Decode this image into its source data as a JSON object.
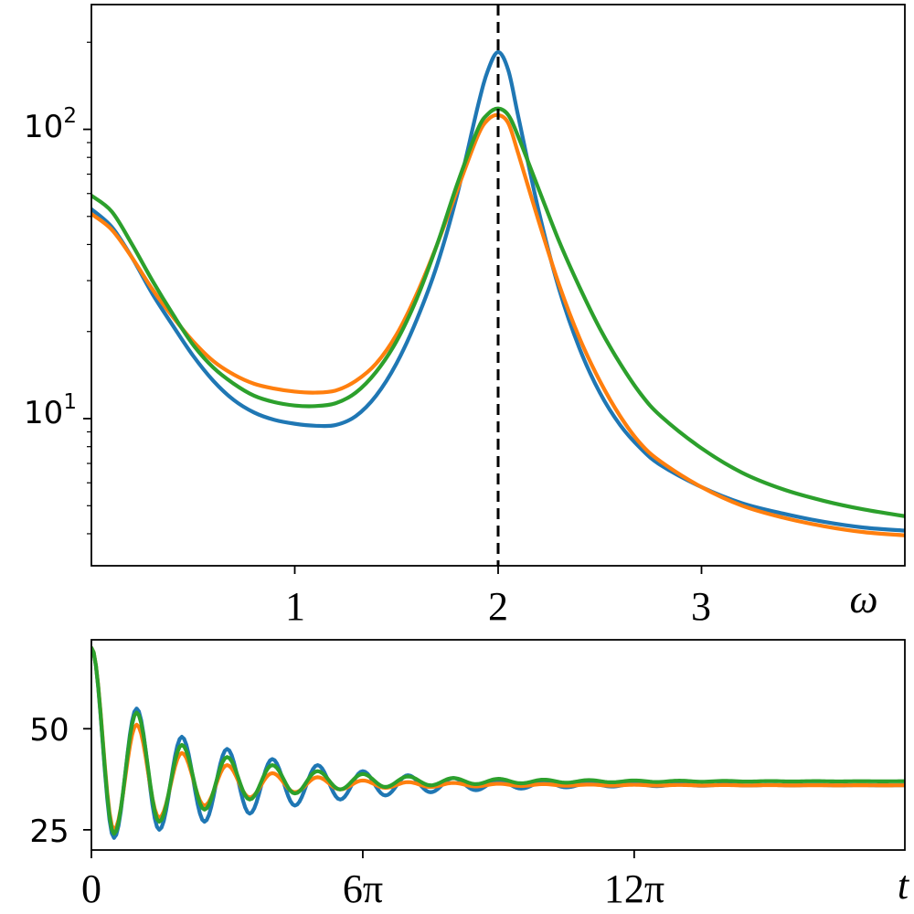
{
  "chart_data": [
    {
      "type": "line",
      "title": "",
      "xlabel": "ω",
      "ylabel": "",
      "xlim": [
        0,
        4.0
      ],
      "ylim": [
        3.1,
        270
      ],
      "yscale": "log",
      "xticks": [
        {
          "value": 1,
          "label": "1"
        },
        {
          "value": 2,
          "label": "2"
        },
        {
          "value": 3,
          "label": "3"
        }
      ],
      "yticks": [
        {
          "value": 10,
          "base": "10",
          "exp": "1"
        },
        {
          "value": 100,
          "base": "10",
          "exp": "2"
        }
      ],
      "grid": false,
      "reference_line": {
        "x": 2,
        "style": "dashed",
        "color": "#000000"
      },
      "series": [
        {
          "color": "#1f77b4",
          "x": [
            0.0,
            0.1,
            0.2,
            0.3,
            0.4,
            0.5,
            0.6,
            0.7,
            0.8,
            0.9,
            1.0,
            1.1,
            1.2,
            1.3,
            1.4,
            1.5,
            1.6,
            1.7,
            1.8,
            1.9,
            1.95,
            2.0,
            2.05,
            2.1,
            2.2,
            2.3,
            2.4,
            2.5,
            2.6,
            2.7,
            2.8,
            3.0,
            3.2,
            3.4,
            3.6,
            3.8,
            4.0
          ],
          "y": [
            53,
            46,
            36,
            27,
            21,
            16.5,
            13.5,
            11.6,
            10.5,
            9.9,
            9.6,
            9.45,
            9.5,
            10.2,
            12,
            15.5,
            22,
            34,
            60,
            120,
            160,
            185,
            160,
            110,
            52,
            28,
            17.5,
            12.3,
            9.5,
            7.9,
            6.9,
            5.8,
            5.1,
            4.7,
            4.4,
            4.2,
            4.1
          ]
        },
        {
          "color": "#ff7f0e",
          "x": [
            0.0,
            0.1,
            0.2,
            0.3,
            0.4,
            0.5,
            0.6,
            0.7,
            0.8,
            0.9,
            1.0,
            1.1,
            1.2,
            1.3,
            1.4,
            1.5,
            1.6,
            1.7,
            1.8,
            1.9,
            1.95,
            2.0,
            2.05,
            2.1,
            2.2,
            2.3,
            2.4,
            2.5,
            2.6,
            2.7,
            2.8,
            3.0,
            3.2,
            3.4,
            3.6,
            3.8,
            4.0
          ],
          "y": [
            51,
            45,
            36,
            28,
            22.5,
            18.5,
            15.8,
            14.2,
            13.2,
            12.7,
            12.4,
            12.3,
            12.5,
            13.5,
            15.5,
            19.5,
            27,
            40,
            62,
            95,
            108,
            112,
            105,
            82,
            48,
            29,
            19,
            13.5,
            10.2,
            8.2,
            7.1,
            5.8,
            5.0,
            4.55,
            4.25,
            4.05,
            3.95
          ]
        },
        {
          "color": "#2ca02c",
          "x": [
            0.0,
            0.1,
            0.2,
            0.3,
            0.4,
            0.5,
            0.6,
            0.7,
            0.8,
            0.9,
            1.0,
            1.1,
            1.2,
            1.3,
            1.4,
            1.5,
            1.6,
            1.7,
            1.8,
            1.9,
            1.95,
            2.0,
            2.05,
            2.1,
            2.2,
            2.3,
            2.4,
            2.5,
            2.6,
            2.7,
            2.8,
            3.0,
            3.2,
            3.4,
            3.6,
            3.8,
            4.0
          ],
          "y": [
            59,
            52,
            40,
            30,
            23,
            18,
            15,
            13.2,
            12,
            11.4,
            11.1,
            11.05,
            11.3,
            12.3,
            14.5,
            18.5,
            26,
            40,
            65,
            100,
            113,
            118,
            112,
            94,
            62,
            41,
            28.5,
            20.5,
            15.5,
            12.2,
            10.2,
            7.9,
            6.5,
            5.7,
            5.2,
            4.85,
            4.6
          ]
        }
      ]
    },
    {
      "type": "line",
      "title": "",
      "xlabel": "t",
      "ylabel": "",
      "xlim": [
        0,
        56.5
      ],
      "ylim": [
        20,
        72
      ],
      "xticks": [
        {
          "value": 0,
          "label": "0"
        },
        {
          "value": 18.85,
          "label": "6π"
        },
        {
          "value": 37.7,
          "label": "12π"
        }
      ],
      "yticks": [
        {
          "value": 25,
          "label": "25"
        },
        {
          "value": 50,
          "label": "50"
        }
      ],
      "grid": false,
      "series": [
        {
          "color": "#1f77b4",
          "baseline": 36,
          "start": 70,
          "first_min": 23,
          "peaks": [
            55,
            48,
            45,
            42.5,
            41,
            39.5,
            38.5,
            37.8,
            37.3,
            36.9,
            36.6,
            36.4,
            36.3,
            36.2,
            36.1,
            36.1,
            36.05,
            36.02,
            36.01
          ],
          "troughs": [
            23,
            25,
            27,
            29,
            31,
            32.5,
            33.5,
            34.3,
            34.8,
            35.2,
            35.5,
            35.7,
            35.8,
            35.9,
            35.95,
            35.97,
            35.98,
            35.99
          ]
        },
        {
          "color": "#ff7f0e",
          "baseline": 36,
          "start": 70,
          "first_min": 25,
          "peaks": [
            51,
            44,
            41,
            39,
            38,
            37.2,
            36.8,
            36.6,
            36.4,
            36.3,
            36.2,
            36.15,
            36.1,
            36.08,
            36.05,
            36.03,
            36.02,
            36.01,
            36.0
          ],
          "troughs": [
            25,
            28,
            31,
            33,
            34.3,
            35,
            35.4,
            35.6,
            35.75,
            35.85,
            35.9,
            35.93,
            35.95,
            35.97,
            35.98,
            35.99,
            36.0,
            36.0
          ]
        },
        {
          "color": "#2ca02c",
          "baseline": 37,
          "start": 70,
          "first_min": 24,
          "peaks": [
            54,
            46,
            43,
            41,
            39.5,
            38.8,
            38.2,
            37.8,
            37.6,
            37.4,
            37.3,
            37.2,
            37.15,
            37.1,
            37.06,
            37.04,
            37.02,
            37.01,
            37.0
          ],
          "troughs": [
            24,
            27,
            30,
            32.5,
            34,
            35,
            35.6,
            36,
            36.3,
            36.5,
            36.65,
            36.75,
            36.82,
            36.88,
            36.92,
            36.95,
            36.97,
            36.99
          ]
        }
      ]
    }
  ]
}
